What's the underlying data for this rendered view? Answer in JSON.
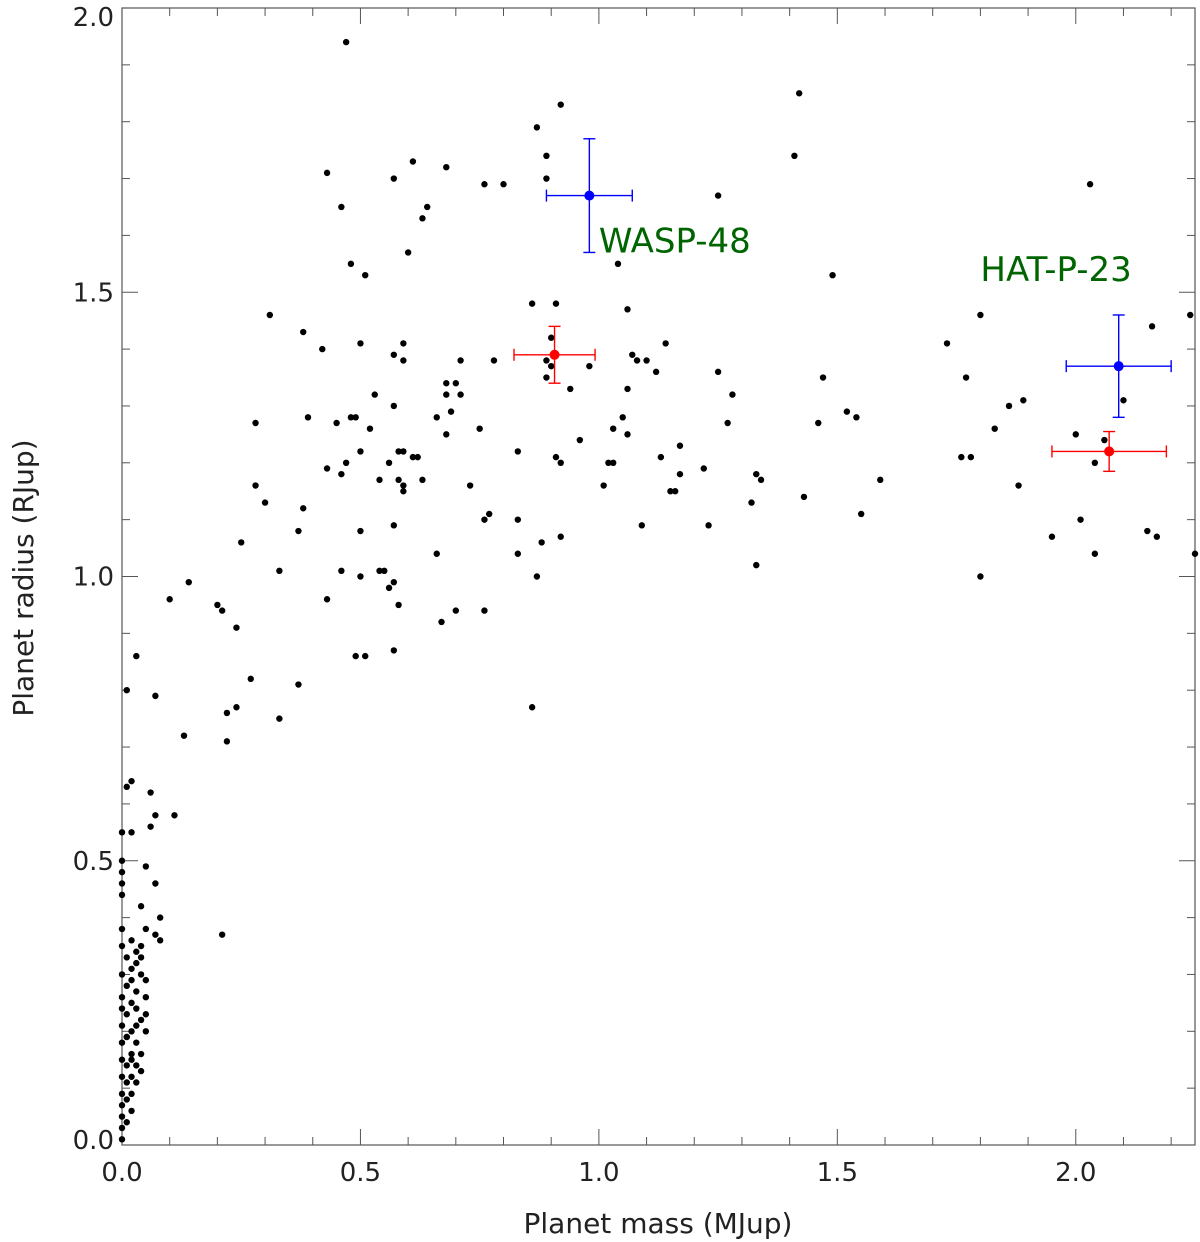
{
  "chart_data": {
    "type": "scatter",
    "xlabel": "Planet mass (MJup)",
    "ylabel": "Planet radius (RJup)",
    "xlim": [
      0.0,
      2.25
    ],
    "ylim": [
      0.0,
      2.0
    ],
    "x_ticks": [
      0.0,
      0.5,
      1.0,
      1.5,
      2.0
    ],
    "y_ticks": [
      0.0,
      0.5,
      1.0,
      1.5,
      2.0
    ],
    "x_tick_labels": [
      "0.0",
      "0.5",
      "1.0",
      "1.5",
      "2.0"
    ],
    "y_tick_labels": [
      "0.0",
      "0.5",
      "1.0",
      "1.5",
      "2.0"
    ],
    "grid": false,
    "colors": {
      "background": "#ffffff",
      "points": "#000000",
      "blue": "#0000ff",
      "red": "#ff0000",
      "annotation": "#006400"
    },
    "annotations": [
      {
        "text": "WASP-48",
        "x": 1.0,
        "y": 1.57,
        "color": "#006400"
      },
      {
        "text": "HAT-P-23",
        "x": 1.8,
        "y": 1.52,
        "color": "#006400"
      }
    ],
    "highlighted": [
      {
        "x": 0.98,
        "y": 1.67,
        "xerr": 0.09,
        "yerr": 0.1,
        "color": "#0000ff"
      },
      {
        "x": 0.907,
        "y": 1.39,
        "xerr": 0.085,
        "yerr": 0.05,
        "color": "#ff0000"
      },
      {
        "x": 2.09,
        "y": 1.37,
        "xerr": 0.11,
        "yerr": 0.09,
        "color": "#0000ff"
      },
      {
        "x": 2.07,
        "y": 1.22,
        "xerr": 0.12,
        "yerr": 0.035,
        "color": "#ff0000"
      }
    ],
    "points": [
      [
        0.47,
        1.94
      ],
      [
        0.92,
        1.83
      ],
      [
        1.42,
        1.85
      ],
      [
        0.87,
        1.79
      ],
      [
        1.41,
        1.74
      ],
      [
        0.89,
        1.74
      ],
      [
        0.61,
        1.73
      ],
      [
        0.68,
        1.72
      ],
      [
        0.43,
        1.71
      ],
      [
        0.57,
        1.7
      ],
      [
        0.89,
        1.7
      ],
      [
        0.76,
        1.69
      ],
      [
        0.8,
        1.69
      ],
      [
        1.25,
        1.67
      ],
      [
        2.03,
        1.69
      ],
      [
        0.64,
        1.65
      ],
      [
        0.46,
        1.65
      ],
      [
        0.63,
        1.63
      ],
      [
        0.6,
        1.57
      ],
      [
        1.04,
        1.55
      ],
      [
        0.48,
        1.55
      ],
      [
        0.51,
        1.53
      ],
      [
        1.49,
        1.53
      ],
      [
        0.31,
        1.46
      ],
      [
        1.8,
        1.46
      ],
      [
        2.24,
        1.46
      ],
      [
        1.06,
        1.47
      ],
      [
        0.86,
        1.48
      ],
      [
        0.91,
        1.48
      ],
      [
        0.38,
        1.43
      ],
      [
        0.9,
        1.42
      ],
      [
        1.73,
        1.41
      ],
      [
        2.16,
        1.44
      ],
      [
        0.42,
        1.4
      ],
      [
        0.5,
        1.41
      ],
      [
        0.59,
        1.41
      ],
      [
        1.14,
        1.41
      ],
      [
        0.57,
        1.39
      ],
      [
        0.59,
        1.38
      ],
      [
        0.71,
        1.38
      ],
      [
        0.78,
        1.38
      ],
      [
        0.89,
        1.38
      ],
      [
        0.98,
        1.37
      ],
      [
        1.07,
        1.39
      ],
      [
        1.08,
        1.38
      ],
      [
        1.1,
        1.38
      ],
      [
        1.12,
        1.36
      ],
      [
        1.25,
        1.36
      ],
      [
        1.77,
        1.35
      ],
      [
        1.47,
        1.35
      ],
      [
        0.68,
        1.34
      ],
      [
        0.7,
        1.34
      ],
      [
        0.68,
        1.32
      ],
      [
        0.71,
        1.32
      ],
      [
        0.89,
        1.35
      ],
      [
        0.94,
        1.33
      ],
      [
        0.9,
        1.37
      ],
      [
        1.06,
        1.33
      ],
      [
        1.28,
        1.32
      ],
      [
        0.53,
        1.32
      ],
      [
        0.48,
        1.28
      ],
      [
        0.39,
        1.28
      ],
      [
        0.49,
        1.28
      ],
      [
        0.66,
        1.28
      ],
      [
        0.69,
        1.29
      ],
      [
        1.03,
        1.26
      ],
      [
        1.05,
        1.28
      ],
      [
        1.06,
        1.25
      ],
      [
        1.86,
        1.3
      ],
      [
        1.89,
        1.31
      ],
      [
        2.1,
        1.31
      ],
      [
        1.52,
        1.29
      ],
      [
        1.54,
        1.28
      ],
      [
        0.57,
        1.3
      ],
      [
        0.28,
        1.27
      ],
      [
        0.45,
        1.27
      ],
      [
        0.52,
        1.26
      ],
      [
        0.75,
        1.26
      ],
      [
        1.27,
        1.27
      ],
      [
        1.46,
        1.27
      ],
      [
        0.68,
        1.25
      ],
      [
        0.58,
        1.22
      ],
      [
        0.59,
        1.22
      ],
      [
        0.61,
        1.21
      ],
      [
        0.62,
        1.21
      ],
      [
        0.83,
        1.22
      ],
      [
        0.91,
        1.21
      ],
      [
        0.92,
        1.2
      ],
      [
        0.96,
        1.24
      ],
      [
        1.13,
        1.21
      ],
      [
        1.17,
        1.23
      ],
      [
        1.83,
        1.26
      ],
      [
        1.76,
        1.21
      ],
      [
        1.78,
        1.21
      ],
      [
        2.0,
        1.25
      ],
      [
        2.06,
        1.24
      ],
      [
        2.04,
        1.2
      ],
      [
        0.47,
        1.2
      ],
      [
        0.43,
        1.19
      ],
      [
        0.46,
        1.18
      ],
      [
        0.5,
        1.22
      ],
      [
        0.56,
        1.2
      ],
      [
        0.58,
        1.17
      ],
      [
        0.59,
        1.16
      ],
      [
        0.63,
        1.17
      ],
      [
        1.02,
        1.2
      ],
      [
        1.03,
        1.2
      ],
      [
        1.22,
        1.19
      ],
      [
        1.33,
        1.18
      ],
      [
        1.34,
        1.17
      ],
      [
        1.17,
        1.18
      ],
      [
        1.59,
        1.17
      ],
      [
        0.28,
        1.16
      ],
      [
        0.54,
        1.17
      ],
      [
        0.59,
        1.15
      ],
      [
        0.73,
        1.16
      ],
      [
        1.01,
        1.16
      ],
      [
        1.15,
        1.15
      ],
      [
        1.16,
        1.15
      ],
      [
        1.32,
        1.13
      ],
      [
        1.43,
        1.14
      ],
      [
        1.88,
        1.16
      ],
      [
        0.3,
        1.13
      ],
      [
        0.38,
        1.12
      ],
      [
        0.37,
        1.08
      ],
      [
        0.57,
        1.09
      ],
      [
        0.76,
        1.1
      ],
      [
        0.77,
        1.11
      ],
      [
        0.83,
        1.1
      ],
      [
        1.09,
        1.09
      ],
      [
        1.23,
        1.09
      ],
      [
        1.55,
        1.11
      ],
      [
        2.01,
        1.1
      ],
      [
        0.25,
        1.06
      ],
      [
        0.5,
        1.08
      ],
      [
        0.66,
        1.04
      ],
      [
        0.83,
        1.04
      ],
      [
        0.88,
        1.06
      ],
      [
        0.92,
        1.07
      ],
      [
        1.95,
        1.07
      ],
      [
        2.15,
        1.08
      ],
      [
        2.17,
        1.07
      ],
      [
        2.25,
        1.04
      ],
      [
        2.04,
        1.04
      ],
      [
        0.33,
        1.01
      ],
      [
        0.46,
        1.01
      ],
      [
        0.5,
        1.0
      ],
      [
        0.54,
        1.01
      ],
      [
        0.55,
        1.01
      ],
      [
        0.57,
        0.99
      ],
      [
        0.56,
        0.98
      ],
      [
        0.87,
        1.0
      ],
      [
        1.33,
        1.02
      ],
      [
        1.8,
        1.0
      ],
      [
        0.14,
        0.99
      ],
      [
        0.1,
        0.96
      ],
      [
        0.43,
        0.96
      ],
      [
        0.58,
        0.95
      ],
      [
        0.7,
        0.94
      ],
      [
        0.76,
        0.94
      ],
      [
        0.2,
        0.95
      ],
      [
        0.21,
        0.94
      ],
      [
        0.24,
        0.91
      ],
      [
        0.67,
        0.92
      ],
      [
        0.03,
        0.86
      ],
      [
        0.49,
        0.86
      ],
      [
        0.51,
        0.86
      ],
      [
        0.57,
        0.87
      ],
      [
        0.27,
        0.82
      ],
      [
        0.37,
        0.81
      ],
      [
        0.01,
        0.8
      ],
      [
        0.07,
        0.79
      ],
      [
        0.86,
        0.77
      ],
      [
        0.22,
        0.76
      ],
      [
        0.24,
        0.77
      ],
      [
        0.33,
        0.75
      ],
      [
        0.13,
        0.72
      ],
      [
        0.22,
        0.71
      ],
      [
        0.01,
        0.63
      ],
      [
        0.02,
        0.64
      ],
      [
        0.06,
        0.62
      ],
      [
        0.07,
        0.58
      ],
      [
        0.11,
        0.58
      ],
      [
        0.0,
        0.55
      ],
      [
        0.02,
        0.55
      ],
      [
        0.06,
        0.56
      ],
      [
        0.0,
        0.5
      ],
      [
        0.05,
        0.49
      ],
      [
        0.07,
        0.46
      ],
      [
        0.0,
        0.48
      ],
      [
        0.0,
        0.46
      ],
      [
        0.0,
        0.44
      ],
      [
        0.04,
        0.42
      ],
      [
        0.0,
        0.38
      ],
      [
        0.05,
        0.38
      ],
      [
        0.07,
        0.37
      ],
      [
        0.08,
        0.4
      ],
      [
        0.08,
        0.36
      ],
      [
        0.21,
        0.37
      ],
      [
        0.0,
        0.35
      ],
      [
        0.02,
        0.36
      ],
      [
        0.03,
        0.34
      ],
      [
        0.04,
        0.35
      ],
      [
        0.01,
        0.33
      ],
      [
        0.02,
        0.31
      ],
      [
        0.03,
        0.32
      ],
      [
        0.04,
        0.3
      ],
      [
        0.0,
        0.3
      ],
      [
        0.05,
        0.29
      ],
      [
        0.01,
        0.28
      ],
      [
        0.03,
        0.27
      ],
      [
        0.05,
        0.26
      ],
      [
        0.0,
        0.26
      ],
      [
        0.02,
        0.25
      ],
      [
        0.0,
        0.24
      ],
      [
        0.01,
        0.23
      ],
      [
        0.03,
        0.24
      ],
      [
        0.04,
        0.22
      ],
      [
        0.05,
        0.23
      ],
      [
        0.0,
        0.21
      ],
      [
        0.02,
        0.2
      ],
      [
        0.03,
        0.21
      ],
      [
        0.05,
        0.2
      ],
      [
        0.01,
        0.19
      ],
      [
        0.03,
        0.18
      ],
      [
        0.0,
        0.18
      ],
      [
        0.02,
        0.16
      ],
      [
        0.04,
        0.16
      ],
      [
        0.0,
        0.15
      ],
      [
        0.01,
        0.14
      ],
      [
        0.03,
        0.14
      ],
      [
        0.04,
        0.13
      ],
      [
        0.02,
        0.12
      ],
      [
        0.0,
        0.12
      ],
      [
        0.01,
        0.11
      ],
      [
        0.03,
        0.11
      ],
      [
        0.0,
        0.09
      ],
      [
        0.02,
        0.09
      ],
      [
        0.01,
        0.08
      ],
      [
        0.0,
        0.07
      ],
      [
        0.02,
        0.06
      ],
      [
        0.0,
        0.05
      ],
      [
        0.01,
        0.04
      ],
      [
        0.0,
        0.03
      ],
      [
        0.0,
        0.01
      ],
      [
        0.01,
        0.19
      ],
      [
        0.02,
        0.15
      ],
      [
        0.04,
        0.33
      ],
      [
        0.02,
        0.29
      ]
    ]
  }
}
